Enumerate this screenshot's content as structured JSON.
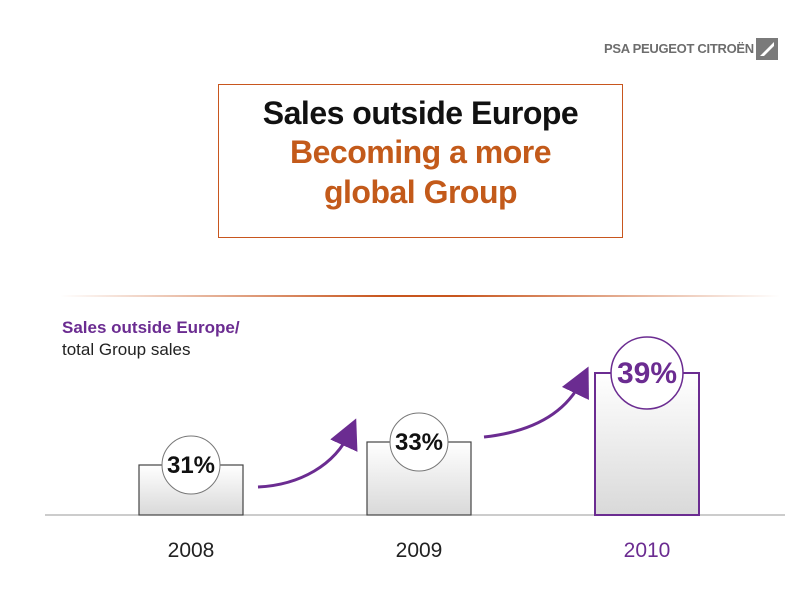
{
  "brand": {
    "logo_text": "PSA PEUGEOT CITROËN"
  },
  "title_box": {
    "line1": "Sales outside Europe",
    "line2": "Becoming a more",
    "line3": "global Group"
  },
  "subtitle": {
    "line1": "Sales outside Europe/",
    "line2": "total Group sales"
  },
  "colors": {
    "accent_orange": "#c35a1a",
    "accent_purple": "#6b2c91",
    "bar_border": "#444444"
  },
  "chart_data": {
    "type": "bar",
    "categories": [
      "2008",
      "2009",
      "2010"
    ],
    "values": [
      31,
      33,
      39
    ],
    "data_labels": [
      "31%",
      "33%",
      "39%"
    ],
    "highlight_index": 2,
    "title": "",
    "xlabel": "",
    "ylabel": ""
  }
}
